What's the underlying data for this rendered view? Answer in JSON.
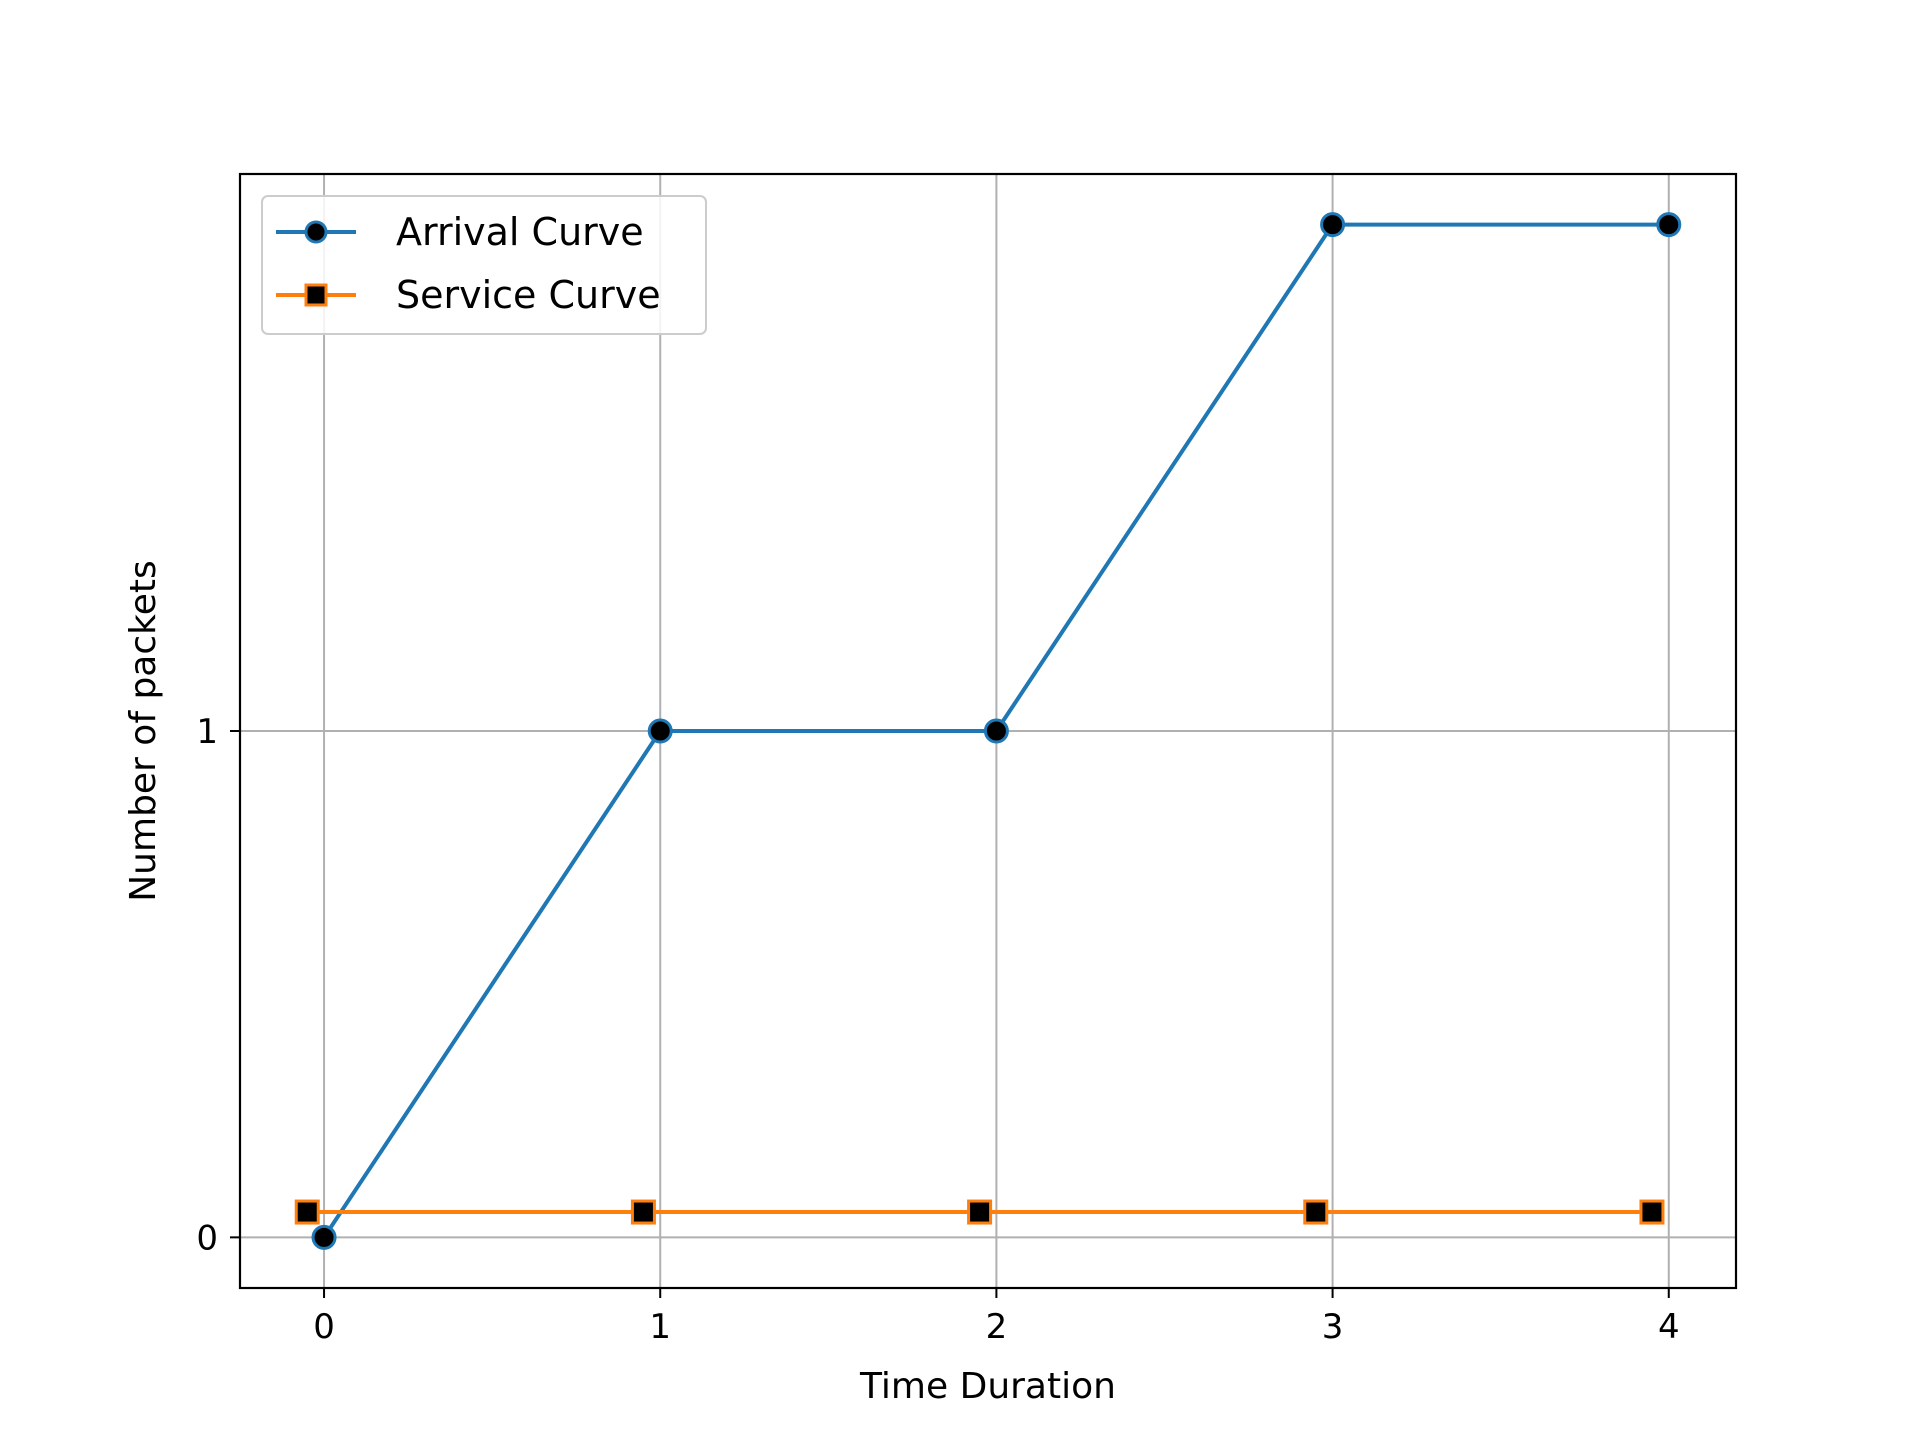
{
  "chart_data": {
    "type": "line",
    "title": "",
    "xlabel": "Time Duration",
    "ylabel": "Number of packets",
    "xlim": [
      -0.25,
      4.2
    ],
    "ylim": [
      -0.1,
      2.1
    ],
    "xticks": [
      "0",
      "1",
      "2",
      "3",
      "4"
    ],
    "yticks": [
      "0",
      "1"
    ],
    "grid": true,
    "legend_position": "top-left",
    "series": [
      {
        "name": "Arrival Curve",
        "x": [
          0,
          1,
          2,
          3,
          4
        ],
        "y": [
          0,
          1,
          1,
          2,
          2
        ],
        "color": "#1f77b4",
        "marker": "circle",
        "marker_fill": "#000000"
      },
      {
        "name": "Service Curve",
        "x": [
          -0.05,
          0.95,
          1.95,
          2.95,
          3.95
        ],
        "y": [
          0.05,
          0.05,
          0.05,
          0.05,
          0.05
        ],
        "color": "#ff7f0e",
        "marker": "square",
        "marker_fill": "#000000"
      }
    ]
  }
}
